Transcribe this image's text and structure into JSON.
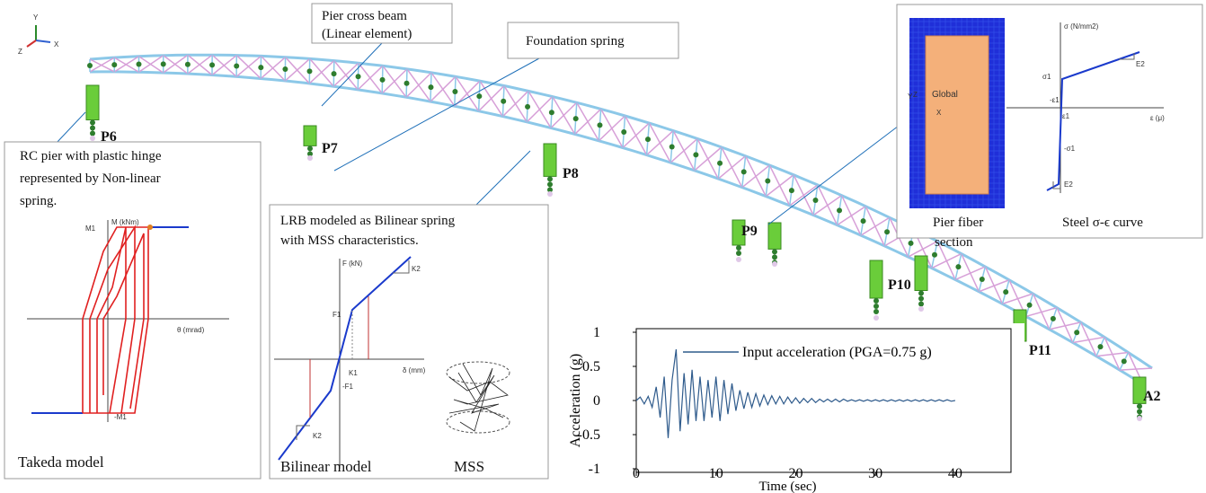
{
  "axes_triad": {
    "y": "Y",
    "z": "Z",
    "x": "X"
  },
  "piers": [
    "P6",
    "P7",
    "P8",
    "P9",
    "P10",
    "P11",
    "A2"
  ],
  "callouts": {
    "pier_cross_beam": [
      "Pier cross beam",
      "(Linear element)"
    ],
    "foundation_spring": "Foundation spring"
  },
  "takeda": {
    "description": [
      "RC pier with plastic hinge",
      "represented by Non-linear",
      "spring."
    ],
    "y_axis": "M (kNm)",
    "x_axis": "θ (mrad)",
    "pos": "M1",
    "neg": "-M1",
    "caption": "Takeda model"
  },
  "lrb": {
    "description": [
      "LRB modeled as Bilinear spring",
      "with MSS characteristics."
    ],
    "y_axis": "F (kN)",
    "x_axis": "δ (mm)",
    "f1": "F1",
    "neg_f1": "-F1",
    "k1": "K1",
    "k2_upper": "K2",
    "k2_lower": "K2",
    "caption": "Bilinear model",
    "mss_caption": "MSS"
  },
  "fiber": {
    "axis_y": "Y",
    "axis_z": "Z",
    "axis_x": "X",
    "global": "Global",
    "caption": [
      "Pier fiber",
      "section"
    ],
    "steel_y_axis": "σ (N/mm2)",
    "sigma1": "σ1",
    "neg_sigma1": "-σ1",
    "e2_upper": "E2",
    "e2_lower": "E2",
    "neg_eps1": "-ε1",
    "eps1": "ε1",
    "x_axis": "ε (μ)",
    "steel_caption": "Steel σ-ϵ curve"
  },
  "acceleration_chart": {
    "type": "line",
    "x_label": "Time (sec)",
    "y_label": "Acceleration  (g)",
    "x": [
      0,
      0.5,
      1,
      1.5,
      2,
      2.5,
      3,
      3.5,
      4,
      4.5,
      5,
      5.5,
      6,
      6.5,
      7,
      7.5,
      8,
      8.5,
      9,
      9.5,
      10,
      10.5,
      11,
      11.5,
      12,
      12.5,
      13,
      13.5,
      14,
      14.5,
      15,
      15.5,
      16,
      16.5,
      17,
      17.5,
      18,
      18.5,
      19,
      19.5,
      20,
      20.5,
      21,
      21.5,
      22,
      22.5,
      23,
      23.5,
      24,
      24.5,
      25,
      25.5,
      26,
      26.5,
      27,
      27.5,
      28,
      28.5,
      29,
      29.5,
      30,
      30.5,
      31,
      31.5,
      32,
      32.5,
      33,
      33.5,
      34,
      34.5,
      35,
      35.5,
      36,
      36.5,
      37,
      37.5,
      38,
      38.5,
      39,
      39.5,
      40
    ],
    "series": [
      {
        "name": "Input acceleration (PGA=0.75 g)",
        "color": "#2f5b8c",
        "values": [
          0,
          0.05,
          -0.05,
          0.06,
          -0.1,
          0.2,
          -0.25,
          0.35,
          -0.55,
          0.3,
          0.75,
          -0.45,
          0.4,
          -0.35,
          0.45,
          -0.3,
          0.35,
          -0.3,
          0.3,
          -0.25,
          0.35,
          -0.3,
          0.3,
          -0.2,
          0.25,
          -0.15,
          0.15,
          -0.12,
          0.12,
          -0.1,
          0.1,
          -0.08,
          0.08,
          -0.06,
          0.07,
          -0.05,
          0.06,
          -0.05,
          0.05,
          -0.04,
          0.04,
          -0.04,
          0.03,
          -0.03,
          0.03,
          -0.03,
          0.02,
          -0.02,
          0.02,
          -0.02,
          0.02,
          -0.02,
          0.02,
          -0.01,
          0.01,
          -0.01,
          0.01,
          -0.01,
          0.01,
          -0.01,
          0.01,
          -0.01,
          0.01,
          -0.01,
          0.01,
          -0.01,
          0.01,
          -0.01,
          0.01,
          -0.01,
          0.01,
          -0.01,
          0.01,
          -0.01,
          0.01,
          -0.01,
          0.01,
          -0.01,
          0.01,
          -0.01,
          0
        ]
      }
    ],
    "xlim": [
      0,
      47
    ],
    "ylim": [
      -1,
      1
    ],
    "xticks": [
      0,
      10,
      20,
      30,
      40
    ],
    "yticks": [
      1,
      0.5,
      0,
      -0.5,
      -1
    ]
  }
}
